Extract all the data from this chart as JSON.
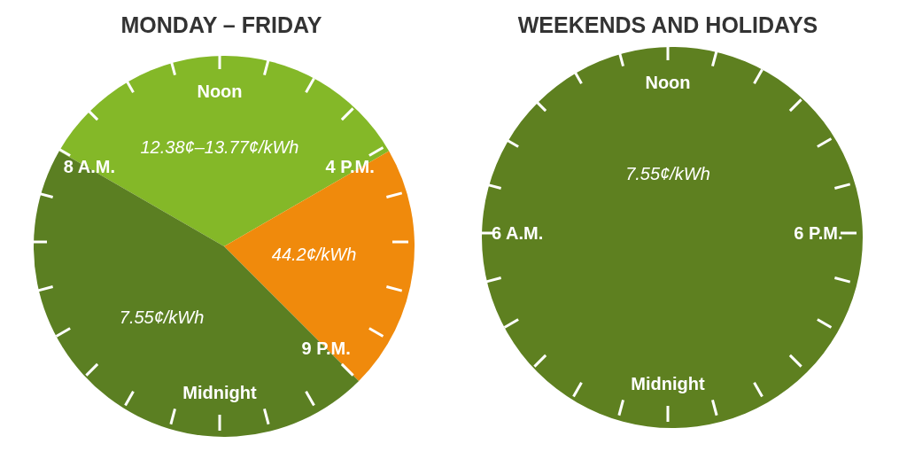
{
  "chart_data": [
    {
      "type": "pie",
      "title": "MONDAY – FRIDAY",
      "categories": [
        "12.38¢–13.77¢/kWh",
        "44.2¢/kWh",
        "7.55¢/kWh"
      ],
      "values": [
        33.33,
        20.83,
        45.84
      ],
      "colors": [
        "#84b828",
        "#f08a0c",
        "#5b7f22"
      ],
      "annotations": [
        "Noon",
        "4 P.M.",
        "9 P.M.",
        "Midnight",
        "8 A.M."
      ],
      "legend": false
    },
    {
      "type": "pie",
      "title": "WEEKENDS AND HOLIDAYS",
      "categories": [
        "7.55¢/kWh"
      ],
      "values": [
        100
      ],
      "colors": [
        "#5e8020"
      ],
      "annotations": [
        "Noon",
        "6 P.M.",
        "Midnight",
        "6 A.M."
      ],
      "legend": false
    }
  ]
}
